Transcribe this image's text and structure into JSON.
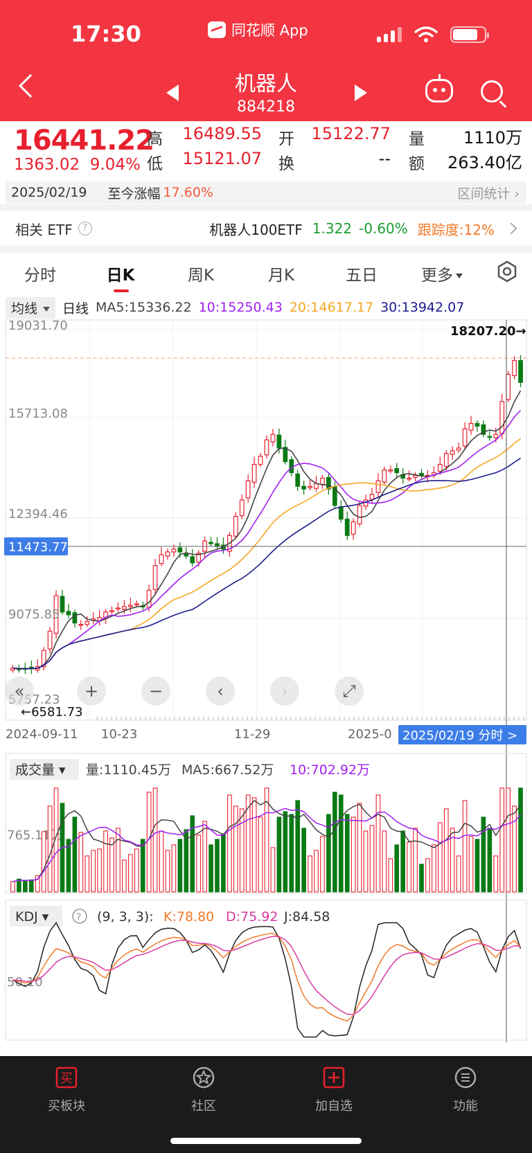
{
  "status": {
    "time": "17:30",
    "app_source": "同花顺 App"
  },
  "nav": {
    "title": "机器人",
    "code": "884218"
  },
  "quote": {
    "price": "16441.22",
    "change": "1363.02",
    "change_pct": "9.04%",
    "high_label": "高",
    "high": "16489.55",
    "low_label": "低",
    "low": "15121.07",
    "open_label": "开",
    "open": "15122.77",
    "turnover_label": "换",
    "turnover": "--",
    "volume_label": "量",
    "volume": "1110万",
    "amount_label": "额",
    "amount": "263.40亿",
    "date": "2025/02/19",
    "since_label": "至今涨幅",
    "since_pct": "17.60%",
    "range_stats": "区间统计"
  },
  "etf": {
    "label": "相关 ETF",
    "name": "机器人100ETF",
    "price": "1.322",
    "change": "-0.60%",
    "tracking": "跟踪度:12%"
  },
  "tabs": [
    {
      "label": "分时"
    },
    {
      "label": "日K"
    },
    {
      "label": "周K"
    },
    {
      "label": "月K"
    },
    {
      "label": "五日"
    },
    {
      "label": "更多"
    }
  ],
  "ma": {
    "selector": "均线",
    "period": "日线",
    "ma5": "MA5:15336.22",
    "ma10": "10:15250.43",
    "ma20": "20:14617.17",
    "ma30": "30:13942.07",
    "colors": {
      "ma5": "#444444",
      "ma10": "#a020f0",
      "ma20": "#f5a623",
      "ma30": "#1a1a8c"
    }
  },
  "chart_data": {
    "type": "candlestick",
    "y_ticks": [
      "19031.70",
      "15713.08",
      "12394.46",
      "9075.85",
      "5757.23"
    ],
    "ylim": [
      5757.23,
      19031.7
    ],
    "crosshair_price": "11473.77",
    "max_label": "18207.20",
    "min_label": "6581.73",
    "x_ticks": [
      "2024-09-11",
      "10-23",
      "11-29",
      "2025-0"
    ],
    "cursor_date": "2025/02/19 分时 >",
    "closes": [
      6650,
      6620,
      6610,
      6630,
      6700,
      7300,
      8000,
      9300,
      8700,
      8600,
      8300,
      8250,
      8350,
      8450,
      8500,
      8700,
      8750,
      8850,
      8900,
      8950,
      9000,
      8900,
      9500,
      10400,
      10800,
      10900,
      11000,
      10900,
      10750,
      10500,
      10850,
      11300,
      11200,
      11100,
      11000,
      11500,
      12200,
      12800,
      13500,
      14100,
      14400,
      15000,
      15200,
      14700,
      14200,
      13800,
      13300,
      13200,
      13300,
      13400,
      13600,
      13200,
      12600,
      12100,
      11500,
      12000,
      12600,
      12800,
      13000,
      13500,
      13900,
      13900,
      13800,
      13600,
      13600,
      13700,
      13700,
      13700,
      13800,
      14100,
      14500,
      14600,
      14700,
      15400,
      15600,
      15500,
      15200,
      15100,
      15200,
      16400,
      17400,
      17900,
      17100
    ]
  },
  "volume": {
    "selector": "成交量",
    "vol": "量:1110.45万",
    "ma5": "MA5:667.52万",
    "ma10": "10:702.92万",
    "axis_label": "765.11万"
  },
  "kdj": {
    "selector": "KDJ",
    "params": "(9, 3, 3):",
    "k": "K:78.80",
    "d": "D:75.92",
    "j": "J:84.58",
    "axis_label": "50.10"
  },
  "controls": [
    "«",
    "+",
    "−",
    "‹",
    "›",
    "⤢"
  ],
  "bottom_nav": [
    {
      "label": "买板块",
      "icon_text": "买"
    },
    {
      "label": "社区"
    },
    {
      "label": "加自选"
    },
    {
      "label": "功能"
    }
  ]
}
